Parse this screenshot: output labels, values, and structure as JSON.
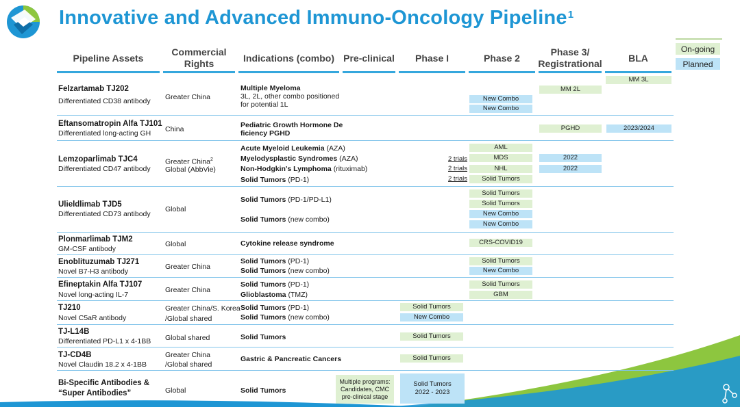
{
  "title": "Innovative and Advanced Immuno-Oncology Pipeline",
  "title_sup": "1",
  "headers": {
    "assets": "Pipeline Assets",
    "rights": "Commercial Rights",
    "indications": "Indications (combo)",
    "preclinical": "Pre-clinical",
    "phase1": "Phase I",
    "phase2": "Phase 2",
    "phase3": "Phase 3/ Registrational",
    "bla": "BLA"
  },
  "legend": {
    "ongoing": "On-going",
    "planned": "Planned"
  },
  "colors": {
    "title": "#1e96d4",
    "ongoing": "#dff0d2",
    "planned": "#bde3f7",
    "header_rule": "#35a7dd",
    "accent_green": "#8dc63f"
  },
  "assets": [
    {
      "name": "Felzartamab TJ202",
      "desc": "Differentiated CD38 antibody",
      "rights": [
        "Greater China"
      ],
      "indications": [
        "Multiple Myeloma",
        "3L, 2L, other combo positioned",
        "for potential 1L"
      ],
      "bars": [
        "New Combo",
        "New Combo",
        "MM 2L",
        "MM 3L"
      ]
    },
    {
      "name": "Eftansomatropin Alfa TJ101",
      "desc": "Differentiated long-acting GH",
      "rights": [
        "China"
      ],
      "indications": [
        "Pediatric Growth Hormone De",
        "ficiency PGHD"
      ],
      "bars": [
        "PGHD",
        "2023/2024"
      ]
    },
    {
      "name": "Lemzoparlimab TJC4",
      "desc": "Differentiated CD47 antibody",
      "rights": [
        "Greater China",
        "Global (AbbVie)"
      ],
      "rights_sup": "2",
      "indications": [
        "Acute Myeloid Leukemia",
        "(AZA)",
        "Myelodysplastic Syndromes",
        "(AZA)",
        "Non-Hodgkin's Lymphoma",
        "(rituximab)",
        "Solid Tumors",
        "(PD-1)"
      ],
      "trials": [
        "2 trials",
        "2 trials",
        "2 trials"
      ],
      "bars": [
        "AML",
        "MDS",
        "NHL",
        "Solid Tumors",
        "2022",
        "2022"
      ]
    },
    {
      "name": "Ulieldlimab TJD5",
      "desc": "Differentiated CD73 antibody",
      "rights": [
        "Global"
      ],
      "indications": [
        "Solid Tumors",
        "(PD-1/PD-L1)",
        "Solid Tumors",
        "(new combo)"
      ],
      "bars": [
        "Solid Tumors",
        "Solid Tumors",
        "New Combo",
        "New Combo"
      ]
    },
    {
      "name": "Plonmarlimab TJM2",
      "desc": "GM-CSF antibody",
      "rights": [
        "Global"
      ],
      "indications": [
        "Cytokine release syndrome"
      ],
      "bars": [
        "CRS-COVID19"
      ]
    },
    {
      "name": "Enoblituzumab TJ271",
      "desc": "Novel B7-H3 antibody",
      "rights": [
        "Greater China"
      ],
      "indications": [
        "Solid Tumors",
        "(PD-1)",
        "Solid Tumors",
        "(new combo)"
      ],
      "bars": [
        "Solid Tumors",
        "New Combo"
      ]
    },
    {
      "name": "Efineptakin Alfa TJ107",
      "desc": "Novel long-acting IL-7",
      "rights": [
        "Greater China"
      ],
      "indications": [
        "Solid Tumors",
        "(PD-1)",
        "Glioblastoma",
        "(TMZ)"
      ],
      "bars": [
        "Solid Tumors",
        "GBM"
      ]
    },
    {
      "name": "TJ210",
      "desc": "Novel C5aR antibody",
      "rights": [
        "Greater China/S. Korea",
        "/Global shared"
      ],
      "indications": [
        "Solid Tumors",
        "(PD-1)",
        "Solid Tumors",
        "(new combo)"
      ],
      "bars": [
        "Solid Tumors",
        "New Combo"
      ]
    },
    {
      "name": "TJ-L14B",
      "desc": "Differentiated PD-L1 x 4-1BB",
      "rights": [
        "Global shared"
      ],
      "indications": [
        "Solid Tumors"
      ],
      "bars": [
        "Solid Tumors"
      ]
    },
    {
      "name": "TJ-CD4B",
      "desc": "Novel Claudin 18.2 x 4-1BB",
      "rights": [
        "Greater China",
        "/Global shared"
      ],
      "indications": [
        "Gastric & Pancreatic Cancers"
      ],
      "bars": [
        "Solid Tumors"
      ]
    },
    {
      "name": "Bi-Specific Antibodies &",
      "name2": "“Super Antibodies”",
      "rights": [
        "Global"
      ],
      "indications": [
        "Solid Tumors"
      ],
      "bars": [
        "Multiple programs:",
        "Candidates, CMC",
        "pre-clinical stage",
        "Solid Tumors",
        "2022 - 2023"
      ]
    }
  ]
}
